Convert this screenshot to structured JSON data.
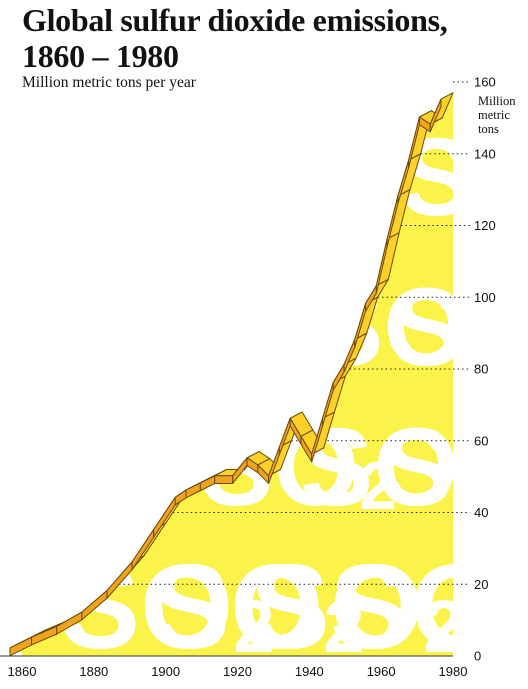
{
  "chart_data": {
    "type": "area",
    "title": "Global sulfur dioxide emissions, 1860 – 1980",
    "subtitle": "Million metric tons per year",
    "ylabel": "Million metric tons",
    "x": [
      1860,
      1866,
      1873,
      1880,
      1887,
      1894,
      1900,
      1906,
      1909,
      1913,
      1917,
      1922,
      1926,
      1929,
      1932,
      1935,
      1938,
      1941,
      1944,
      1947,
      1950,
      1953,
      1956,
      1959,
      1962,
      1965,
      1968,
      1971,
      1974,
      1977,
      1980
    ],
    "y": [
      4,
      7,
      10,
      14,
      20,
      28,
      37,
      46,
      48,
      50,
      52,
      52,
      57,
      55,
      52,
      60,
      68,
      63,
      58,
      68,
      78,
      83,
      90,
      100,
      105,
      118,
      130,
      140,
      152,
      150,
      157
    ],
    "xlim": [
      1860,
      1980
    ],
    "ylim": [
      0,
      160
    ],
    "x_ticks": [
      "1860",
      "1880",
      "1900",
      "1920",
      "1940",
      "1960",
      "1980"
    ],
    "y_ticks": [
      "0",
      "20",
      "40",
      "60",
      "80",
      "100",
      "120",
      "140",
      "160"
    ],
    "watermark": "SO2",
    "grid": "dotted horizontal leaders at y ticks",
    "colors": {
      "area_fill": "#fbf34a",
      "ribbon_top": "#fdd02a",
      "ribbon_side": "#f0a41e",
      "ribbon_outline": "#6a4a0a",
      "watermark_text": "#ffffff"
    }
  }
}
